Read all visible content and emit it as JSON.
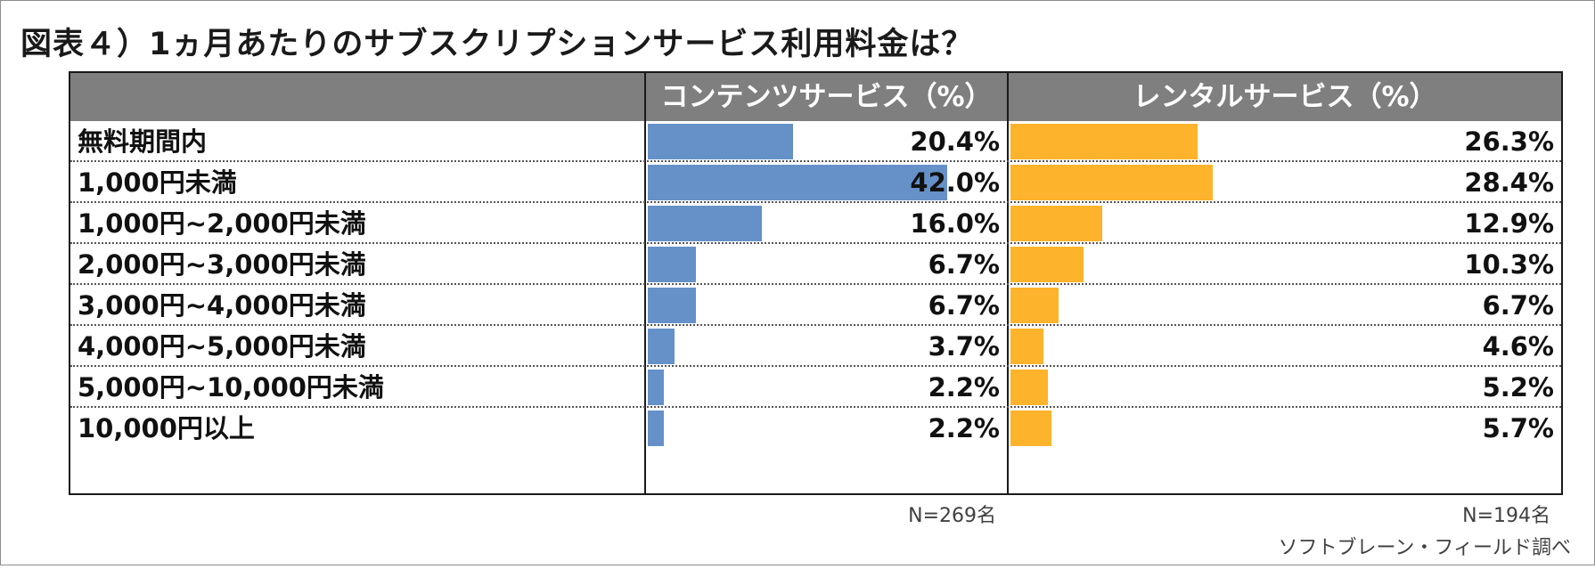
{
  "chart_data": {
    "type": "table",
    "title": "図表４）1ヵ月あたりのサブスクリプションサービス利用料金は？",
    "columns": [
      "コンテンツサービス（%）",
      "レンタルサービス（%）"
    ],
    "categories": [
      "無料期間内",
      "1,000円未満",
      "1,000円~2,000円未満",
      "2,000円~3,000円未満",
      "3,000円~4,000円未満",
      "4,000円~5,000円未満",
      "5,000円~10,000円未満",
      "10,000円以上"
    ],
    "series": [
      {
        "name": "コンテンツサービス（%）",
        "values": [
          20.4,
          42.0,
          16.0,
          6.7,
          6.7,
          3.7,
          2.2,
          2.2
        ],
        "labels": [
          "20.4%",
          "42.0%",
          "16.0%",
          "6.7%",
          "6.7%",
          "3.7%",
          "2.2%",
          "2.2%"
        ],
        "color": "#6591c8",
        "n": "N=269名"
      },
      {
        "name": "レンタルサービス（%）",
        "values": [
          26.3,
          28.4,
          12.9,
          10.3,
          6.7,
          4.6,
          5.2,
          5.7
        ],
        "labels": [
          "26.3%",
          "28.4%",
          "12.9%",
          "10.3%",
          "6.7%",
          "4.6%",
          "5.2%",
          "5.7%"
        ],
        "color": "#fdb32b",
        "n": "N=194名"
      }
    ],
    "source": "ソフトブレーン・フィールド調べ"
  }
}
